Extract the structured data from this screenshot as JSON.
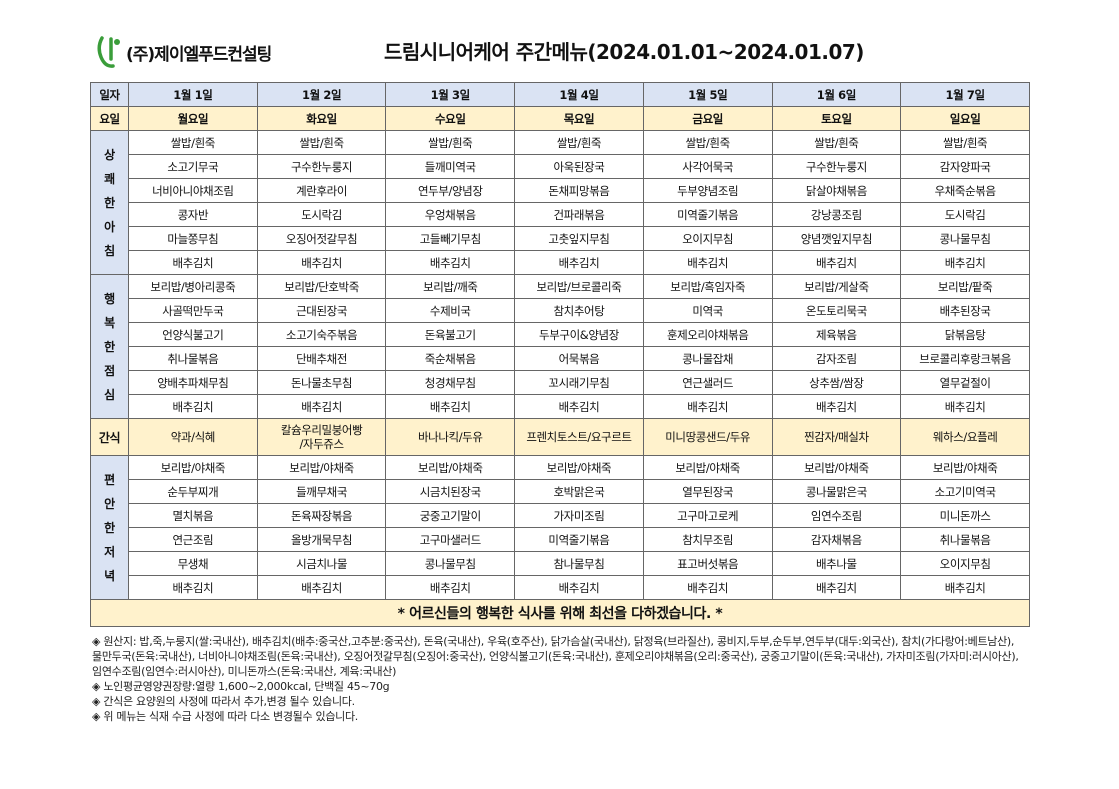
{
  "logo_text": "(주)제이엘푸드컨설팅",
  "title": "드림시니어케어 주간메뉴(2024.01.01~2024.01.07)",
  "date_label": "일자",
  "dates": [
    "1월 1일",
    "1월 2일",
    "1월 3일",
    "1월 4일",
    "1월 5일",
    "1월 6일",
    "1월 7일"
  ],
  "day_label": "요일",
  "days": [
    "월요일",
    "화요일",
    "수요일",
    "목요일",
    "금요일",
    "토요일",
    "일요일"
  ],
  "breakfast": {
    "label": [
      "상",
      "쾌",
      "한",
      "아",
      "침"
    ],
    "rows": [
      [
        "쌀밥/흰죽",
        "쌀밥/흰죽",
        "쌀밥/흰죽",
        "쌀밥/흰죽",
        "쌀밥/흰죽",
        "쌀밥/흰죽",
        "쌀밥/흰죽"
      ],
      [
        "소고기무국",
        "구수한누룽지",
        "들깨미역국",
        "아욱된장국",
        "사각어묵국",
        "구수한누룽지",
        "감자양파국"
      ],
      [
        "너비아니야채조림",
        "계란후라이",
        "연두부/양념장",
        "돈채피망볶음",
        "두부양념조림",
        "닭살야채볶음",
        "우채죽순볶음"
      ],
      [
        "콩자반",
        "도시락김",
        "우엉채볶음",
        "건파래볶음",
        "미역줄기볶음",
        "강낭콩조림",
        "도시락김"
      ],
      [
        "마늘쫑무침",
        "오징어젓갈무침",
        "고들빼기무침",
        "고춧잎지무침",
        "오이지무침",
        "양념깻잎지무침",
        "콩나물무침"
      ],
      [
        "배추김치",
        "배추김치",
        "배추김치",
        "배추김치",
        "배추김치",
        "배추김치",
        "배추김치"
      ]
    ]
  },
  "lunch": {
    "label": [
      "행",
      "복",
      "한",
      "점",
      "심"
    ],
    "rows": [
      [
        "보리밥/병아리콩죽",
        "보리밥/단호박죽",
        "보리밥/깨죽",
        "보리밥/브로콜리죽",
        "보리밥/흑임자죽",
        "보리밥/게살죽",
        "보리밥/팥죽"
      ],
      [
        "사골떡만두국",
        "근대된장국",
        "수제비국",
        "참치추어탕",
        "미역국",
        "온도토리묵국",
        "배추된장국"
      ],
      [
        "언양식불고기",
        "소고기숙주볶음",
        "돈육불고기",
        "두부구이&양념장",
        "훈제오리야채볶음",
        "제육볶음",
        "닭볶음탕"
      ],
      [
        "취나물볶음",
        "단배추채전",
        "죽순채볶음",
        "어묵볶음",
        "콩나물잡채",
        "감자조림",
        "브로콜리후랑크볶음"
      ],
      [
        "양배추파채무침",
        "돈나물초무침",
        "청경채무침",
        "꼬시래기무침",
        "연근샐러드",
        "상추쌈/쌈장",
        "열무겉절이"
      ],
      [
        "배추김치",
        "배추김치",
        "배추김치",
        "배추김치",
        "배추김치",
        "배추김치",
        "배추김치"
      ]
    ]
  },
  "snack": {
    "label": "간식",
    "items": [
      "약과/식혜",
      "칼슘우리밀붕어빵\n/자두쥬스",
      "바나나킥/두유",
      "프렌치토스트/요구르트",
      "미니땅콩샌드/두유",
      "찐감자/매실차",
      "웨하스/요플레"
    ]
  },
  "dinner": {
    "label": [
      "편",
      "안",
      "한",
      "저",
      "녁"
    ],
    "rows": [
      [
        "보리밥/야채죽",
        "보리밥/야채죽",
        "보리밥/야채죽",
        "보리밥/야채죽",
        "보리밥/야채죽",
        "보리밥/야채죽",
        "보리밥/야채죽"
      ],
      [
        "순두부찌개",
        "들깨무채국",
        "시금치된장국",
        "호박맑은국",
        "열무된장국",
        "콩나물맑은국",
        "소고기미역국"
      ],
      [
        "멸치볶음",
        "돈육짜장볶음",
        "궁중고기말이",
        "가자미조림",
        "고구마고로케",
        "임연수조림",
        "미니돈까스"
      ],
      [
        "연근조림",
        "올방개묵무침",
        "고구마샐러드",
        "미역줄기볶음",
        "참치무조림",
        "감자채볶음",
        "취나물볶음"
      ],
      [
        "무생채",
        "시금치나물",
        "콩나물무침",
        "참나물무침",
        "표고버섯볶음",
        "배추나물",
        "오이지무침"
      ],
      [
        "배추김치",
        "배추김치",
        "배추김치",
        "배추김치",
        "배추김치",
        "배추김치",
        "배추김치"
      ]
    ]
  },
  "footer": "* 어르신들의 행복한 식사를 위해 최선을 다하겠습니다. *",
  "notes": [
    "◈ 원산지: 밥,죽,누룽지(쌀:국내산), 배추김치(배추:중국산,고추분:중국산), 돈육(국내산), 우육(호주산), 닭가슴살(국내산), 닭정육(브라질산), 콩비지,두부,순두부,연두부(대두:외국산), 참치(가다랑어:베트남산), 물만두국(돈육:국내산), 너비아니야채조림(돈육:국내산), 오징어젓갈무침(오징어:중국산), 언양식불고기(돈육:국내산), 훈제오리야채볶음(오리:중국산), 궁중고기말이(돈육:국내산), 가자미조림(가자미:러시아산), 임연수조림(임연수:러시아산), 미니돈까스(돈육:국내산, 계육:국내산)",
    "◈ 노인평균영양권장량:열량 1,600~2,000kcal, 단백질 45~70g",
    "◈ 간식은 요양원의 사정에 따라서 추가,변경 될수 있습니다.",
    "◈ 위 메뉴는 식재 수급 사정에 따라 다소 변경될수 있습니다."
  ],
  "colors": {
    "header_blue": "#dae3f3",
    "header_yellow": "#fff2cc",
    "logo_green": "#3a9d3a"
  }
}
